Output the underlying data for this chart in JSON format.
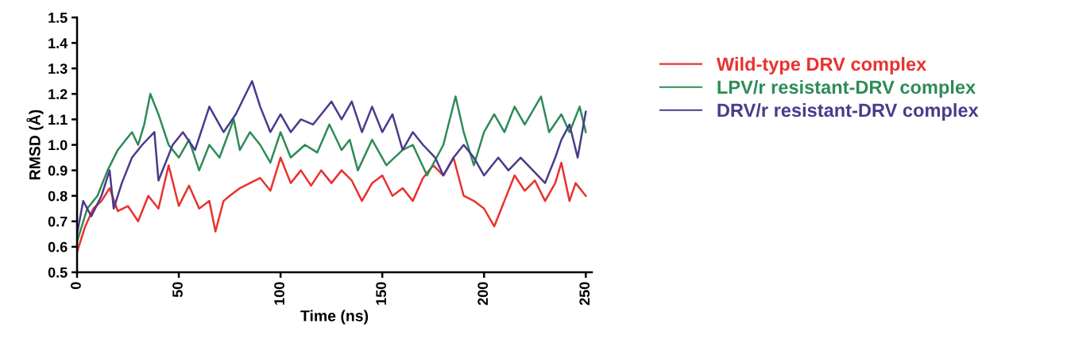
{
  "chart_data": {
    "type": "line",
    "xlabel": "Time (ns)",
    "ylabel": "RMSD (Å)",
    "xlim": [
      0,
      253
    ],
    "xticks": [
      0,
      50,
      100,
      150,
      200,
      250
    ],
    "ylim": [
      0.5,
      1.5
    ],
    "yticks": [
      0.5,
      0.6,
      0.7,
      0.8,
      0.9,
      {
        "value": 1,
        "label": "1.0"
      },
      1.1,
      1.2,
      1.3,
      1.4,
      1.5
    ],
    "grid": false,
    "legend": "right",
    "marker": "none",
    "line_style": "solid",
    "series": [
      {
        "name": "Wild-type DRV complex",
        "color": "#e8322e",
        "x": [
          0,
          4,
          8,
          12,
          16,
          20,
          25,
          30,
          35,
          40,
          45,
          50,
          55,
          60,
          65,
          68,
          72,
          75,
          80,
          85,
          90,
          95,
          100,
          105,
          110,
          115,
          120,
          125,
          130,
          135,
          140,
          145,
          150,
          155,
          160,
          165,
          170,
          175,
          180,
          185,
          190,
          195,
          200,
          205,
          210,
          215,
          220,
          225,
          230,
          235,
          238,
          242,
          245,
          250
        ],
        "values": [
          0.58,
          0.68,
          0.75,
          0.78,
          0.83,
          0.74,
          0.76,
          0.7,
          0.8,
          0.75,
          0.92,
          0.76,
          0.84,
          0.75,
          0.78,
          0.66,
          0.78,
          0.8,
          0.83,
          0.85,
          0.87,
          0.82,
          0.95,
          0.85,
          0.9,
          0.84,
          0.9,
          0.85,
          0.9,
          0.86,
          0.78,
          0.85,
          0.88,
          0.8,
          0.83,
          0.78,
          0.87,
          0.92,
          0.88,
          0.95,
          0.8,
          0.78,
          0.75,
          0.68,
          0.78,
          0.88,
          0.82,
          0.86,
          0.78,
          0.85,
          0.93,
          0.78,
          0.85,
          0.8
        ]
      },
      {
        "name": "LPV/r resistant-DRV complex",
        "color": "#2e8b57",
        "x": [
          0,
          5,
          10,
          15,
          20,
          24,
          27,
          30,
          33,
          36,
          40,
          45,
          50,
          55,
          60,
          65,
          70,
          77,
          80,
          85,
          90,
          95,
          100,
          105,
          112,
          118,
          124,
          130,
          134,
          138,
          145,
          152,
          160,
          165,
          172,
          180,
          186,
          190,
          195,
          200,
          205,
          210,
          215,
          220,
          228,
          232,
          238,
          242,
          247,
          250
        ],
        "values": [
          0.62,
          0.75,
          0.8,
          0.9,
          0.98,
          1.02,
          1.05,
          1.0,
          1.08,
          1.2,
          1.12,
          1.0,
          0.95,
          1.02,
          0.9,
          1.0,
          0.95,
          1.1,
          0.98,
          1.05,
          1.0,
          0.93,
          1.05,
          0.95,
          1.0,
          0.97,
          1.08,
          0.98,
          1.02,
          0.9,
          1.02,
          0.92,
          0.98,
          1.0,
          0.88,
          1.0,
          1.19,
          1.05,
          0.92,
          1.05,
          1.12,
          1.05,
          1.15,
          1.08,
          1.19,
          1.05,
          1.12,
          1.05,
          1.15,
          1.05
        ]
      },
      {
        "name": "DRV/r resistant-DRV complex",
        "color": "#4b3a8c",
        "x": [
          0,
          3,
          7,
          12,
          16,
          18,
          22,
          27,
          32,
          38,
          40,
          47,
          52,
          58,
          65,
          72,
          78,
          86,
          90,
          95,
          100,
          105,
          110,
          116,
          125,
          130,
          135,
          140,
          145,
          150,
          155,
          160,
          165,
          170,
          176,
          180,
          185,
          190,
          195,
          200,
          207,
          212,
          218,
          224,
          230,
          235,
          238,
          242,
          246,
          250
        ],
        "values": [
          0.65,
          0.78,
          0.72,
          0.8,
          0.9,
          0.75,
          0.85,
          0.95,
          1.0,
          1.05,
          0.86,
          1.0,
          1.05,
          0.98,
          1.15,
          1.05,
          1.12,
          1.25,
          1.15,
          1.05,
          1.12,
          1.05,
          1.1,
          1.08,
          1.17,
          1.1,
          1.17,
          1.05,
          1.15,
          1.05,
          1.12,
          0.98,
          1.05,
          1.0,
          0.95,
          0.88,
          0.95,
          1.0,
          0.95,
          0.88,
          0.95,
          0.9,
          0.95,
          0.9,
          0.85,
          0.95,
          1.02,
          1.08,
          0.95,
          1.13
        ]
      }
    ]
  }
}
